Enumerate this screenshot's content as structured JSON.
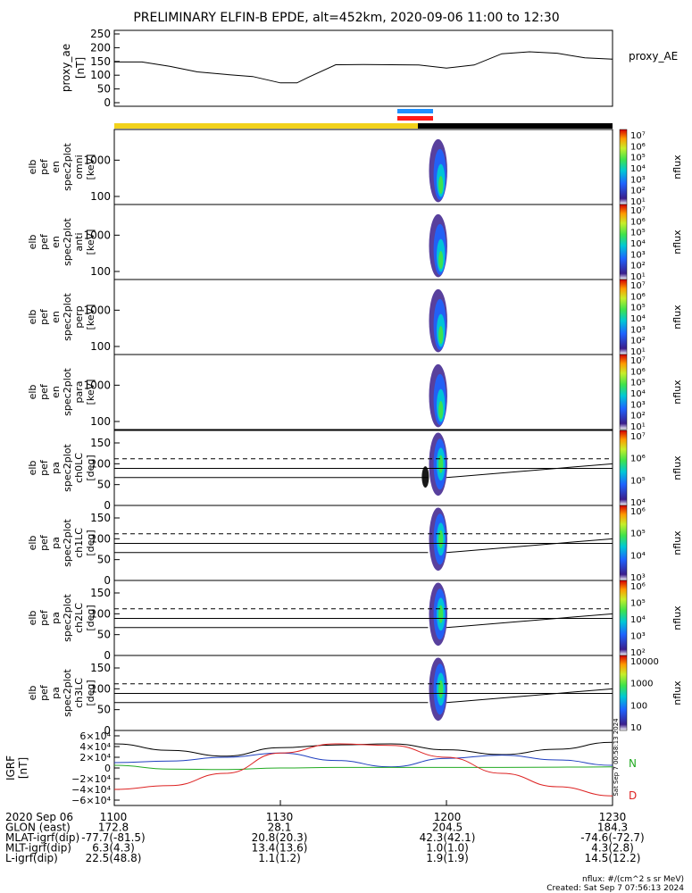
{
  "title": "PRELIMINARY ELFIN-B EPDE, alt=452km, 2020-09-06 11:00 to 12:30",
  "panels": {
    "ae": {
      "ylabel": [
        "proxy_ae",
        "[nT]"
      ],
      "ticks": [
        "250",
        "200",
        "150",
        "100",
        "50",
        "0"
      ],
      "legend": "proxy_AE"
    },
    "omni": {
      "ylabel": [
        "elb",
        "pef",
        "en",
        "spec2plot",
        "omni",
        "[keV]"
      ],
      "ticks": [
        "1000",
        "100"
      ]
    },
    "anti": {
      "ylabel": [
        "elb",
        "pef",
        "en",
        "spec2plot",
        "anti",
        "[keV]"
      ],
      "ticks": [
        "1000",
        "100"
      ]
    },
    "perp": {
      "ylabel": [
        "elb",
        "pef",
        "en",
        "spec2plot",
        "perp",
        "[keV]"
      ],
      "ticks": [
        "1000",
        "100"
      ]
    },
    "para": {
      "ylabel": [
        "elb",
        "pef",
        "en",
        "spec2plot",
        "para",
        "[keV]"
      ],
      "ticks": [
        "1000",
        "100"
      ]
    },
    "ch0": {
      "ylabel": [
        "elb",
        "pef",
        "pa",
        "spec2plot",
        "ch0LC",
        "[deg]"
      ],
      "ticks": [
        "150",
        "100",
        "50",
        "0"
      ]
    },
    "ch1": {
      "ylabel": [
        "elb",
        "pef",
        "pa",
        "spec2plot",
        "ch1LC",
        "[deg]"
      ],
      "ticks": [
        "150",
        "100",
        "50",
        "0"
      ]
    },
    "ch2": {
      "ylabel": [
        "elb",
        "pef",
        "pa",
        "spec2plot",
        "ch2LC",
        "[deg]"
      ],
      "ticks": [
        "150",
        "100",
        "50",
        "0"
      ]
    },
    "ch3": {
      "ylabel": [
        "elb",
        "pef",
        "pa",
        "spec2plot",
        "ch3LC",
        "[deg]"
      ],
      "ticks": [
        "150",
        "100",
        "50",
        "0"
      ]
    },
    "igrf": {
      "ylabel": [
        "IGRF",
        "[nT]"
      ],
      "ticks": [
        "6×10⁴",
        "4×10⁴",
        "2×10⁴",
        "0",
        "−2×10⁴",
        "−4×10⁴",
        "−6×10⁴"
      ],
      "labels": [
        "N",
        "D"
      ]
    }
  },
  "colorbar_label": "nflux",
  "colorbars": {
    "omni": [
      "10⁷",
      "10⁶",
      "10⁵",
      "10⁴",
      "10³",
      "10²",
      "10¹"
    ],
    "anti": [
      "10⁷",
      "10⁶",
      "10⁵",
      "10⁴",
      "10³",
      "10²",
      "10¹"
    ],
    "perp": [
      "10⁷",
      "10⁶",
      "10⁵",
      "10⁴",
      "10³",
      "10²",
      "10¹"
    ],
    "para": [
      "10⁷",
      "10⁶",
      "10⁵",
      "10⁴",
      "10³",
      "10²",
      "10¹"
    ],
    "ch0": [
      "10⁷",
      "10⁶",
      "10⁵",
      "10⁴"
    ],
    "ch1": [
      "10⁶",
      "10⁵",
      "10⁴",
      "10³"
    ],
    "ch2": [
      "10⁶",
      "10⁵",
      "10⁴",
      "10³",
      "10²"
    ],
    "ch3": [
      "10000",
      "1000",
      "100",
      "10"
    ]
  },
  "ephemeris": {
    "rows": [
      {
        "label": "2020 Sep 06",
        "values": [
          "1100",
          "1130",
          "1200",
          "1230"
        ]
      },
      {
        "label": "GLON (east)",
        "values": [
          "172.8",
          "28.1",
          "204.5",
          "184.3"
        ]
      },
      {
        "label": "MLAT-igrf(dip)",
        "values": [
          "-77.7(-81.5)",
          "20.8(20.3)",
          "42.3(42.1)",
          "-74.6(-72.7)"
        ]
      },
      {
        "label": "MLT-igrf(dip)",
        "values": [
          "6.3(4.3)",
          "13.4(13.6)",
          "1.0(1.0)",
          "4.3(2.8)"
        ]
      },
      {
        "label": "L-igrf(dip)",
        "values": [
          "22.5(48.8)",
          "1.1(1.2)",
          "1.9(1.9)",
          "14.5(12.2)"
        ]
      }
    ]
  },
  "footer": {
    "units": "nflux: #/(cm^2 s sr MeV)",
    "created": "Created: Sat Sep  7 07:56:13 2024",
    "side_stamp": "Sat Sep  7 00:58:13 2024"
  },
  "chart_data": [
    {
      "type": "line",
      "name": "proxy_AE",
      "x_unit": "UT HHMM",
      "xlim": [
        "11:00",
        "12:30"
      ],
      "ylim": [
        0,
        250
      ],
      "x": [
        "11:00",
        "11:05",
        "11:10",
        "11:15",
        "11:20",
        "11:25",
        "11:30",
        "11:33",
        "11:35",
        "11:40",
        "11:45",
        "11:50",
        "11:55",
        "12:00",
        "12:05",
        "12:10",
        "12:15",
        "12:20",
        "12:25",
        "12:30"
      ],
      "y": [
        148,
        148,
        132,
        112,
        103,
        95,
        72,
        72,
        92,
        138,
        139,
        138,
        137,
        126,
        137,
        178,
        185,
        180,
        163,
        158
      ]
    },
    {
      "type": "heatmap",
      "name": "omni",
      "yscale": "log",
      "ylim": [
        60,
        7000
      ],
      "ylabel": "keV",
      "active_window": [
        "11:57",
        "12:00"
      ],
      "peak_nflux": 1000000.0
    },
    {
      "type": "heatmap",
      "name": "anti",
      "yscale": "log",
      "ylim": [
        60,
        7000
      ],
      "ylabel": "keV",
      "active_window": [
        "11:57",
        "12:00"
      ],
      "peak_nflux": 100000.0
    },
    {
      "type": "heatmap",
      "name": "perp",
      "yscale": "log",
      "ylim": [
        60,
        7000
      ],
      "ylabel": "keV",
      "active_window": [
        "11:57",
        "12:00"
      ],
      "peak_nflux": 1000000.0
    },
    {
      "type": "heatmap",
      "name": "para",
      "yscale": "log",
      "ylim": [
        60,
        7000
      ],
      "ylabel": "keV",
      "active_window": [
        "11:57",
        "12:00"
      ],
      "peak_nflux": 100000.0
    },
    {
      "type": "heatmap",
      "name": "ch0LC",
      "ylim": [
        0,
        180
      ],
      "ylabel": "deg",
      "active_window": [
        "11:57",
        "12:00"
      ],
      "loss_cone_lines": [
        [
          67,
          100
        ],
        [
          89,
          89
        ]
      ],
      "dashed": 112
    },
    {
      "type": "heatmap",
      "name": "ch1LC",
      "ylim": [
        0,
        180
      ],
      "ylabel": "deg",
      "active_window": [
        "11:57",
        "12:00"
      ],
      "loss_cone_lines": [
        [
          67,
          100
        ],
        [
          89,
          89
        ]
      ],
      "dashed": 112
    },
    {
      "type": "heatmap",
      "name": "ch2LC",
      "ylim": [
        0,
        180
      ],
      "ylabel": "deg",
      "active_window": [
        "11:57",
        "12:00"
      ],
      "loss_cone_lines": [
        [
          67,
          100
        ],
        [
          89,
          89
        ]
      ],
      "dashed": 112
    },
    {
      "type": "heatmap",
      "name": "ch3LC",
      "ylim": [
        0,
        180
      ],
      "ylabel": "deg",
      "active_window": [
        "11:57",
        "12:00"
      ],
      "loss_cone_lines": [
        [
          67,
          100
        ],
        [
          89,
          89
        ]
      ],
      "dashed": 112
    },
    {
      "type": "line",
      "name": "IGRF",
      "ylim": [
        -60000,
        60000
      ],
      "x": [
        "11:00",
        "11:10",
        "11:20",
        "11:30",
        "11:40",
        "11:50",
        "12:00",
        "12:10",
        "12:20",
        "12:30"
      ],
      "series": [
        {
          "name": "black",
          "color": "#000000",
          "values": [
            45000,
            33000,
            22000,
            38000,
            43000,
            45000,
            34000,
            25000,
            35000,
            48000
          ]
        },
        {
          "name": "blue",
          "color": "#1f3fbf",
          "values": [
            10000,
            13000,
            20000,
            28000,
            14000,
            2000,
            18000,
            24000,
            15000,
            5000
          ]
        },
        {
          "name": "N",
          "color": "#22aa22",
          "values": [
            5000,
            -2000,
            -3000,
            0,
            1000,
            1000,
            1000,
            1000,
            1500,
            2000
          ]
        },
        {
          "name": "D",
          "color": "#dd2222",
          "values": [
            -40000,
            -33000,
            -10000,
            28000,
            45000,
            42000,
            20000,
            -10000,
            -35000,
            -52000
          ]
        }
      ]
    }
  ]
}
